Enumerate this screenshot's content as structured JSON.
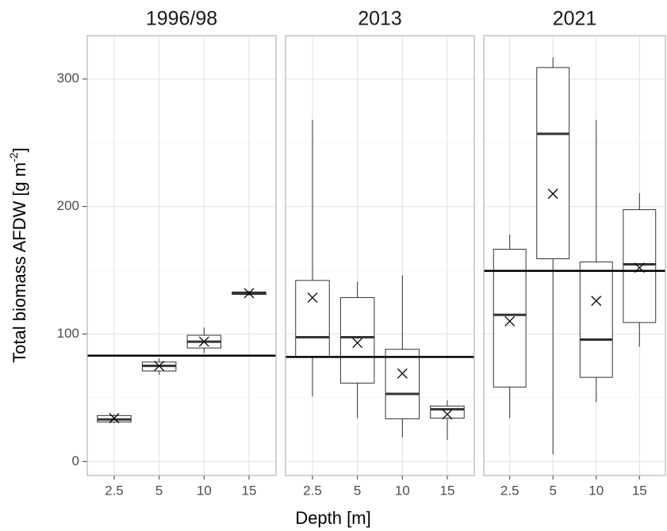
{
  "chart_data": {
    "type": "box",
    "ylabel": "Total biomass AFDW [g m",
    "ylabel_sup": "-2",
    "ylabel_end": "]",
    "xlabel": "Depth [m]",
    "ylim": [
      -11,
      334
    ],
    "yticks": [
      0,
      100,
      200,
      300
    ],
    "minor_yticks": [
      50,
      150,
      250
    ],
    "grid": true,
    "box_color": "#333333",
    "line_color": "#000000",
    "facets": [
      {
        "title": "1996/98",
        "categories": [
          "2.5",
          "5",
          "10",
          "15"
        ],
        "min": [
          30,
          68,
          85,
          130
        ],
        "q1": [
          31,
          71,
          89,
          131
        ],
        "median": [
          33,
          75,
          94,
          132
        ],
        "q3": [
          36,
          78,
          99,
          133
        ],
        "max": [
          37,
          81,
          105,
          134
        ],
        "mean": [
          34,
          75,
          94,
          132
        ],
        "reference_line": 83
      },
      {
        "title": "2013",
        "categories": [
          "2.5",
          "5",
          "10",
          "15"
        ],
        "min": [
          51,
          34,
          19,
          17
        ],
        "q1": [
          82,
          61.5,
          33.5,
          34
        ],
        "median": [
          97.5,
          97.5,
          53,
          41
        ],
        "q3": [
          142,
          128.6,
          88,
          43.5
        ],
        "max": [
          268,
          141,
          146,
          48
        ],
        "mean": [
          128.5,
          93,
          69,
          37
        ],
        "reference_line": 82
      },
      {
        "title": "2021",
        "categories": [
          "2.5",
          "5",
          "10",
          "15"
        ],
        "min": [
          34,
          5.6,
          46.6,
          90
        ],
        "q1": [
          58.4,
          159,
          66,
          109
        ],
        "median": [
          115,
          257,
          95.6,
          154.7
        ],
        "q3": [
          166.5,
          309,
          156.5,
          197.5
        ],
        "max": [
          178,
          317,
          268,
          210.5
        ],
        "mean": [
          110,
          210,
          126,
          152
        ],
        "reference_line": 149.5
      }
    ]
  }
}
